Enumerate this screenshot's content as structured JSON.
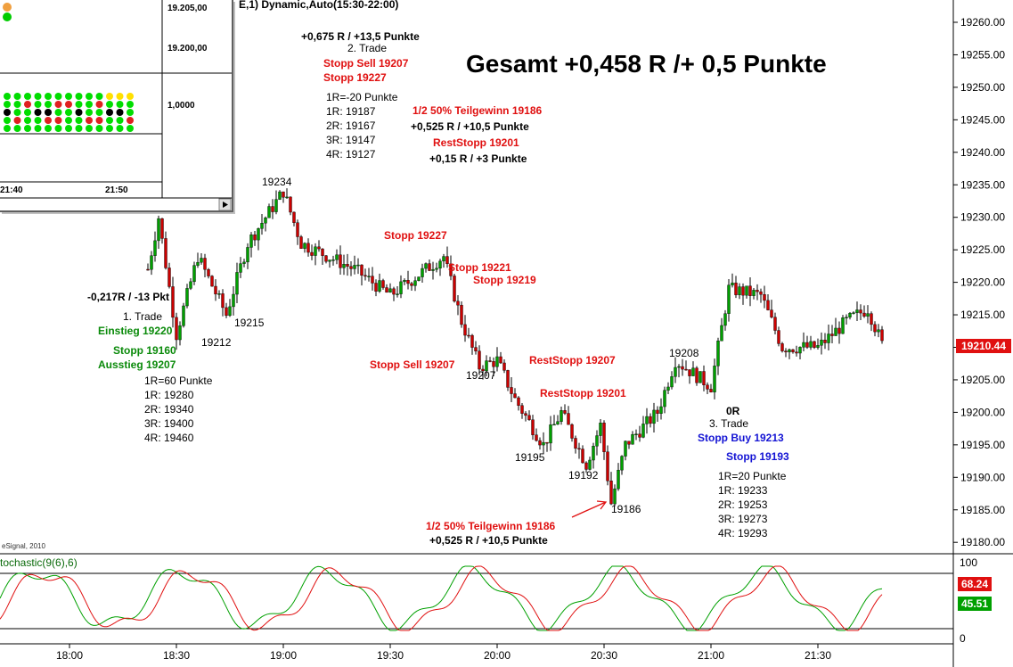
{
  "header": {
    "title_fragment": "E,1) Dynamic,Auto(15:30-22:00)"
  },
  "headline": "Gesamt +0,458 R /+ 0,5 Punkte",
  "watermark": "eSignal, 2010",
  "colors": {
    "candle_up": "#00a000",
    "candle_down": "#cc0000",
    "annotation_red": "#e01010",
    "annotation_green": "#0a8a0a",
    "annotation_blue": "#1414d4",
    "stoch_k": "#00a000",
    "stoch_d": "#e01010"
  },
  "annotations": {
    "trade1": {
      "result": "-0,217R / -13 Pkt",
      "title": "1. Trade",
      "entry": "Einstieg 19220",
      "stop": "Stopp 19160",
      "exit": "Ausstieg 19207",
      "targets": [
        "1R=60 Punkte",
        "1R: 19280",
        "2R: 19340",
        "3R: 19400",
        "4R: 19460"
      ]
    },
    "trade2": {
      "result": "+0,675 R / +13,5 Punkte",
      "title": "2. Trade",
      "stop_sell": "Stopp  Sell 19207",
      "stop": "Stopp 19227",
      "targets": [
        "1R=-20 Punkte",
        "1R: 19187",
        "2R: 19167",
        "3R: 19147",
        "4R: 19127"
      ],
      "partial": "1/2 50% Teilgewinn 19186",
      "partial_result": "+0,525 R / +10,5 Punkte",
      "rest_stop": "RestStopp 19201",
      "rest_result": "+0,15 R / +3 Punkte"
    },
    "chart_notes": {
      "stopp_19227": "Stopp 19227",
      "stopp_19221": "Stopp 19221",
      "stopp_19219": "Stopp 19219",
      "stopp_sell": "Stopp  Sell 19207",
      "reststopp_19207": "RestStopp 19207",
      "reststopp_19201": "RestStopp 19201",
      "partial_bottom": "1/2 50% Teilgewinn 19186",
      "partial_bottom_result": "+0,525 R / +10,5 Punkte"
    },
    "trade3": {
      "result": "0R",
      "title": "3. Trade",
      "stop_buy": "Stopp Buy 19213",
      "stop": "Stopp 19193",
      "targets": [
        "1R=20 Punkte",
        "1R: 19233",
        "2R: 19253",
        "3R: 19273",
        "4R: 19293"
      ]
    },
    "pivots": {
      "p19234": "19234",
      "p19212": "19212",
      "p19215": "19215",
      "p19207": "19207",
      "p19195": "19195",
      "p19192": "19192",
      "p19186": "19186",
      "p19208": "19208"
    }
  },
  "inset": {
    "price_labels": [
      "19.205,00",
      "19.200,00",
      "1,0000"
    ],
    "time_labels": [
      "21:40",
      "21:50"
    ]
  },
  "stochastic": {
    "label": "tochastic(9(6),6)",
    "k_value": "45.51",
    "d_value": "68.24",
    "axis_labels": [
      "100",
      "0"
    ]
  },
  "chart_data": {
    "type": "candlestick",
    "title": "Gesamt +0,458 R /+ 0,5 Punkte",
    "ylim": [
      19177,
      19265
    ],
    "y_ticks": [
      19180,
      19185,
      19190,
      19195,
      19200,
      19205,
      19210,
      19215,
      19220,
      19225,
      19230,
      19235,
      19240,
      19245,
      19250,
      19255,
      19260
    ],
    "y_tick_labels": [
      "19180.00",
      "19185.00",
      "19190.00",
      "19195.00",
      "19200.00",
      "19205.00",
      "19210.00",
      "19215.00",
      "19220.00",
      "19225.00",
      "19230.00",
      "19235.00",
      "19240.00",
      "19245.00",
      "19250.00",
      "19255.00",
      "19260.00"
    ],
    "x_tick_labels": [
      "18:00",
      "18:30",
      "19:00",
      "19:30",
      "20:00",
      "20:30",
      "21:00",
      "21:30"
    ],
    "last_price": "19210.44",
    "grid": false,
    "key_levels": [
      {
        "time": "18:30",
        "price": 19212
      },
      {
        "time": "18:44",
        "price": 19215
      },
      {
        "time": "19:00",
        "price": 19234
      },
      {
        "time": "19:55",
        "price": 19207
      },
      {
        "time": "20:13",
        "price": 19195
      },
      {
        "time": "20:25",
        "price": 19192
      },
      {
        "time": "20:32",
        "price": 19186
      },
      {
        "time": "20:50",
        "price": 19208
      },
      {
        "time": "21:05",
        "price": 19219
      },
      {
        "time": "21:48",
        "price": 19210.44
      }
    ]
  }
}
